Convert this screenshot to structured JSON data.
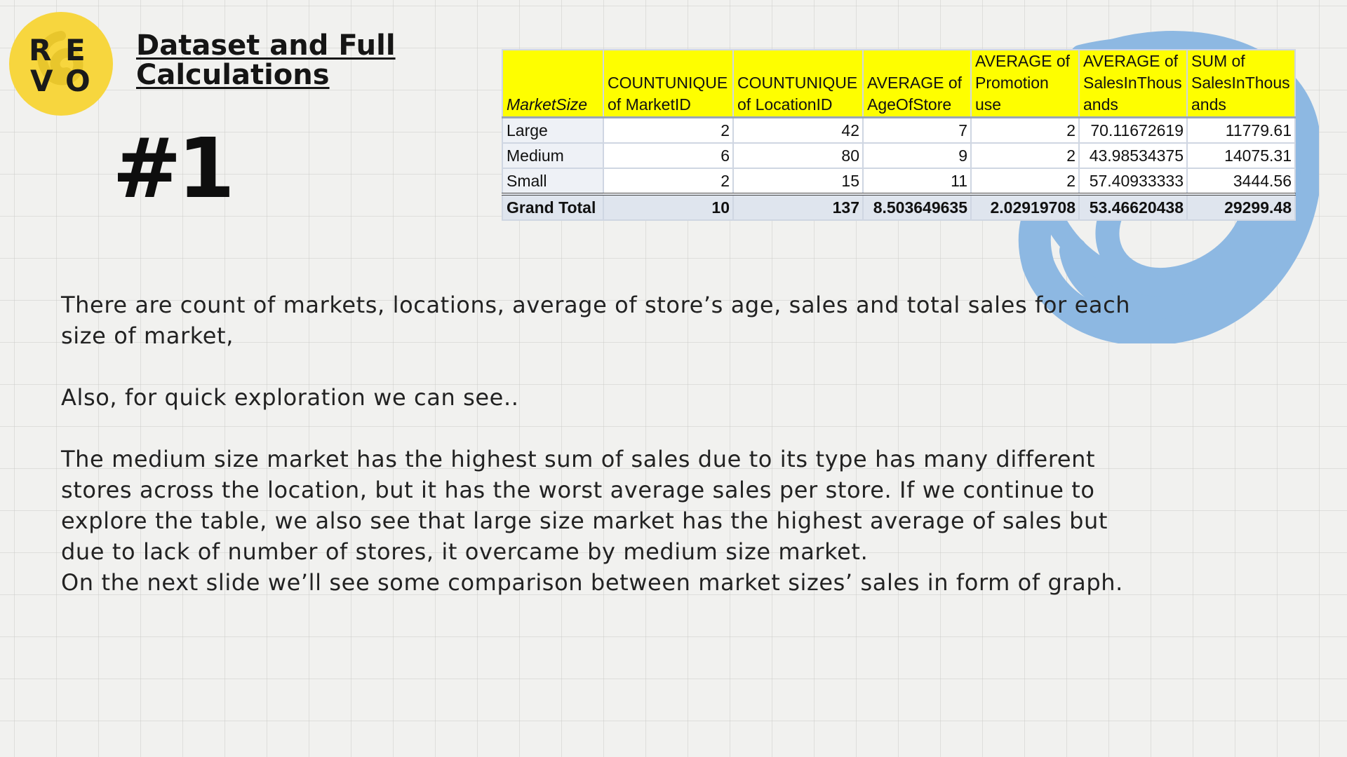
{
  "logo": {
    "letters": [
      "R",
      "E",
      "V",
      "O"
    ],
    "background": "#f7d63e"
  },
  "title": "Dataset and Full Calculations",
  "slide_number": "#1",
  "colors": {
    "header_fill": "#fefe00",
    "scribble": "#8db8e2",
    "title_text": "#151515"
  },
  "pivot": {
    "headers": [
      "MarketSize",
      "COUNTUNIQUE of MarketID",
      "COUNTUNIQUE of LocationID",
      "AVERAGE of AgeOfStore",
      "AVERAGE of Promotion use",
      "AVERAGE of SalesInThous ands",
      "SUM of SalesInThous ands"
    ],
    "rows": [
      [
        "Large",
        "2",
        "42",
        "7",
        "2",
        "70.11672619",
        "11779.61"
      ],
      [
        "Medium",
        "6",
        "80",
        "9",
        "2",
        "43.98534375",
        "14075.31"
      ],
      [
        "Small",
        "2",
        "15",
        "11",
        "2",
        "57.40933333",
        "3444.56"
      ]
    ],
    "total": [
      "Grand Total",
      "10",
      "137",
      "8.503649635",
      "2.02919708",
      "53.46620438",
      "29299.48"
    ]
  },
  "paragraphs": [
    "There are count of markets, locations, average of store’s age, sales and total sales for each size of market,",
    "Also, for quick exploration we can see..",
    "The medium size market has the highest sum of sales due to its type has many different stores across the location, but it has the worst average sales per store. If we continue to explore the table, we also see that large size market has the highest average of sales but due to lack of number of stores, it overcame by medium size market.",
    "On the next slide we’ll see some comparison between market sizes’ sales in form of graph."
  ]
}
